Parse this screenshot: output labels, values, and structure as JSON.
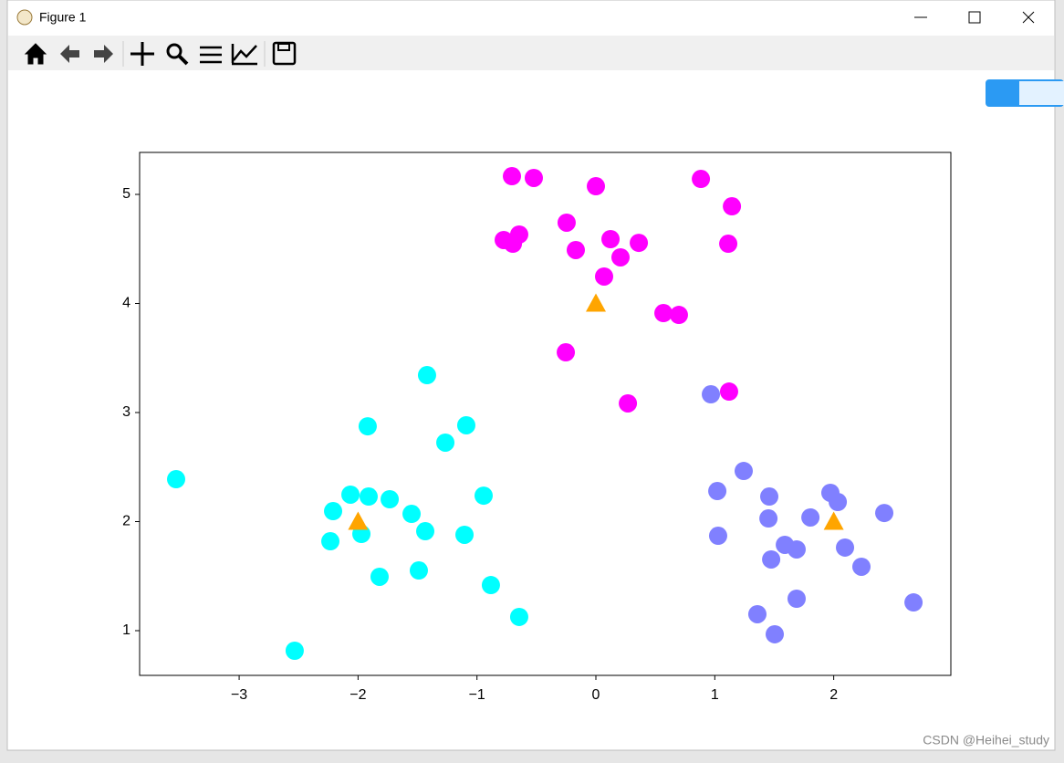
{
  "window": {
    "title": "Figure 1"
  },
  "watermark": "CSDN @Heihei_study",
  "chart_data": {
    "type": "scatter",
    "xlim": [
      -3.837,
      2.985
    ],
    "ylim": [
      0.59,
      5.385
    ],
    "xticks": [
      {
        "value": -3,
        "label": "−3"
      },
      {
        "value": -2,
        "label": "−2"
      },
      {
        "value": -1,
        "label": "−1"
      },
      0,
      1,
      2
    ],
    "yticks": [
      1,
      2,
      3,
      4,
      5
    ],
    "grid": false,
    "series": [
      {
        "color": "#ff00ff",
        "marker": "circle",
        "x": [
          -0.706,
          -0.522,
          0.0,
          0.883,
          1.144,
          -0.246,
          -0.775,
          -0.698,
          -0.645,
          -0.169,
          0.123,
          0.361,
          0.207,
          1.113,
          0.069,
          0.568,
          0.698,
          -0.253,
          0.269,
          1.12
        ],
        "y": [
          5.167,
          5.151,
          5.075,
          5.142,
          4.891,
          4.741,
          4.582,
          4.548,
          4.632,
          4.49,
          4.59,
          4.556,
          4.423,
          4.548,
          4.247,
          3.912,
          3.895,
          3.552,
          3.084,
          3.192
        ]
      },
      {
        "color": "#00ffff",
        "marker": "circle",
        "x": [
          -3.53,
          -1.42,
          -1.919,
          -1.09,
          -1.266,
          -0.944,
          -2.064,
          -1.911,
          -1.734,
          -2.21,
          -1.55,
          -1.435,
          -1.972,
          -1.105,
          -2.233,
          -1.819,
          -1.489,
          -0.883,
          -0.645,
          -2.533
        ],
        "y": [
          2.389,
          3.343,
          2.874,
          2.883,
          2.724,
          2.238,
          2.247,
          2.23,
          2.205,
          2.096,
          2.071,
          1.912,
          1.887,
          1.879,
          1.82,
          1.494,
          1.552,
          1.418,
          1.126,
          0.816
        ]
      },
      {
        "color": "#8080ff",
        "marker": "circle",
        "x": [
          0.967,
          1.243,
          1.021,
          1.458,
          1.972,
          2.034,
          2.425,
          1.451,
          1.804,
          1.028,
          1.589,
          1.688,
          2.095,
          1.474,
          2.233,
          1.688,
          2.671,
          1.358,
          1.504
        ],
        "y": [
          3.167,
          2.464,
          2.28,
          2.23,
          2.264,
          2.18,
          2.079,
          2.029,
          2.038,
          1.87,
          1.787,
          1.745,
          1.762,
          1.653,
          1.586,
          1.293,
          1.259,
          1.151,
          0.967
        ]
      },
      {
        "color": "#ffa500",
        "marker": "triangle",
        "x": [
          -2,
          0,
          2
        ],
        "y": [
          2,
          4,
          2
        ]
      }
    ]
  }
}
